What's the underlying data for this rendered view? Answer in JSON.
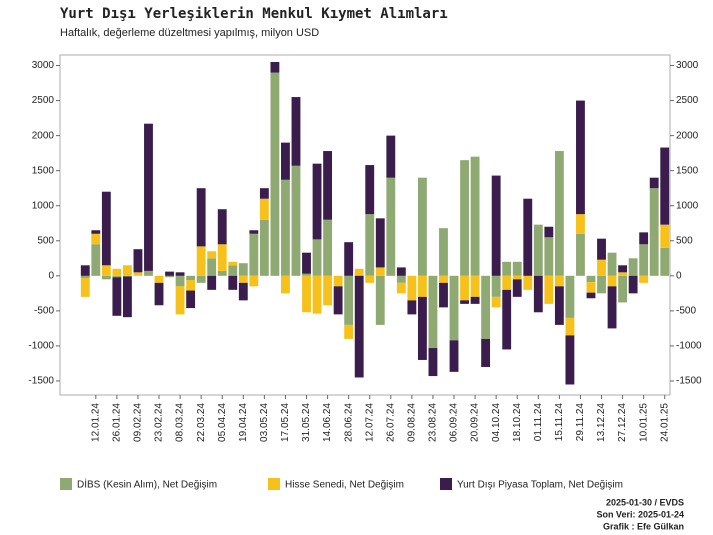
{
  "chart_data": {
    "type": "bar",
    "title": "Yurt Dışı Yerleşiklerin Menkul Kıymet Alımları",
    "subtitle": "Haftalık, değerleme düzeltmesi yapılmış, milyon USD",
    "stacked": true,
    "categories": [
      null,
      "12.01.24",
      null,
      "26.01.24",
      null,
      "09.02.24",
      null,
      "23.02.24",
      null,
      "08.03.24",
      null,
      "22.03.24",
      null,
      "05.04.24",
      null,
      "19.04.24",
      null,
      "03.05.24",
      null,
      "17.05.24",
      null,
      "31.05.24",
      null,
      "14.06.24",
      null,
      "28.06.24",
      null,
      "12.07.24",
      null,
      "26.07.24",
      null,
      "09.08.24",
      null,
      "23.08.24",
      null,
      "06.09.24",
      null,
      "20.09.24",
      null,
      "04.10.24",
      null,
      "18.10.24",
      null,
      "01.11.24",
      null,
      "15.11.24",
      null,
      "29.11.24",
      null,
      "13.12.24",
      null,
      "27.12.24",
      null,
      "10.01.25",
      null,
      "24.01.25"
    ],
    "series": [
      {
        "name": "DİBS (Kesin Alım), Net Değişim",
        "color": "#8fa973",
        "values": [
          -30,
          450,
          -50,
          -20,
          -10,
          0,
          70,
          0,
          -20,
          -150,
          -60,
          -100,
          250,
          70,
          150,
          180,
          600,
          800,
          2900,
          1370,
          1570,
          30,
          520,
          800,
          0,
          -700,
          0,
          880,
          -700,
          1400,
          -100,
          0,
          1400,
          -1030,
          680,
          -920,
          1650,
          1700,
          -900,
          -300,
          200,
          200,
          0,
          730,
          550,
          1780,
          -600,
          600,
          -90,
          -250,
          330,
          -380,
          250,
          450,
          1250,
          400
        ]
      },
      {
        "name": "Hisse Senedi, Net Değişim",
        "color": "#f6c11b",
        "values": [
          -270,
          150,
          150,
          100,
          150,
          50,
          0,
          -100,
          0,
          -400,
          -150,
          420,
          100,
          380,
          50,
          -100,
          -150,
          300,
          0,
          -250,
          0,
          -520,
          -540,
          -420,
          -150,
          -200,
          100,
          -100,
          120,
          0,
          -150,
          -350,
          -300,
          0,
          -100,
          0,
          -350,
          -300,
          0,
          -150,
          -200,
          -50,
          -200,
          0,
          -400,
          -150,
          -250,
          280,
          -150,
          230,
          -150,
          50,
          0,
          -100,
          0,
          330
        ]
      },
      {
        "name": "Yurt Dışı Piyasa Toplam, Net Değişim",
        "color": "#3a1c4d",
        "values": [
          150,
          50,
          1050,
          -550,
          -580,
          330,
          2100,
          -320,
          60,
          50,
          -250,
          830,
          -200,
          500,
          -200,
          -250,
          50,
          150,
          150,
          530,
          980,
          300,
          1080,
          980,
          -400,
          480,
          -1450,
          700,
          700,
          600,
          120,
          -200,
          -900,
          -400,
          -350,
          -450,
          -50,
          -100,
          -400,
          1430,
          -850,
          -250,
          1100,
          -520,
          150,
          -550,
          -700,
          1620,
          -80,
          300,
          -600,
          100,
          -250,
          170,
          150,
          1100
        ]
      }
    ],
    "ylim": [
      -1700,
      3150
    ],
    "yticks": [
      -1500,
      -1000,
      -500,
      0,
      500,
      1000,
      1500,
      2000,
      2500,
      3000
    ],
    "y2lim": [
      -1700,
      3150
    ],
    "y2ticks": [
      -1500,
      -1000,
      -500,
      0,
      500,
      1000,
      1500,
      2000,
      2500,
      3000
    ],
    "legend": "bottom",
    "notes": [
      "2025-01-30 / EVDS",
      "Son Veri: 2025-01-24",
      "Grafik : Efe Gülkan"
    ]
  }
}
